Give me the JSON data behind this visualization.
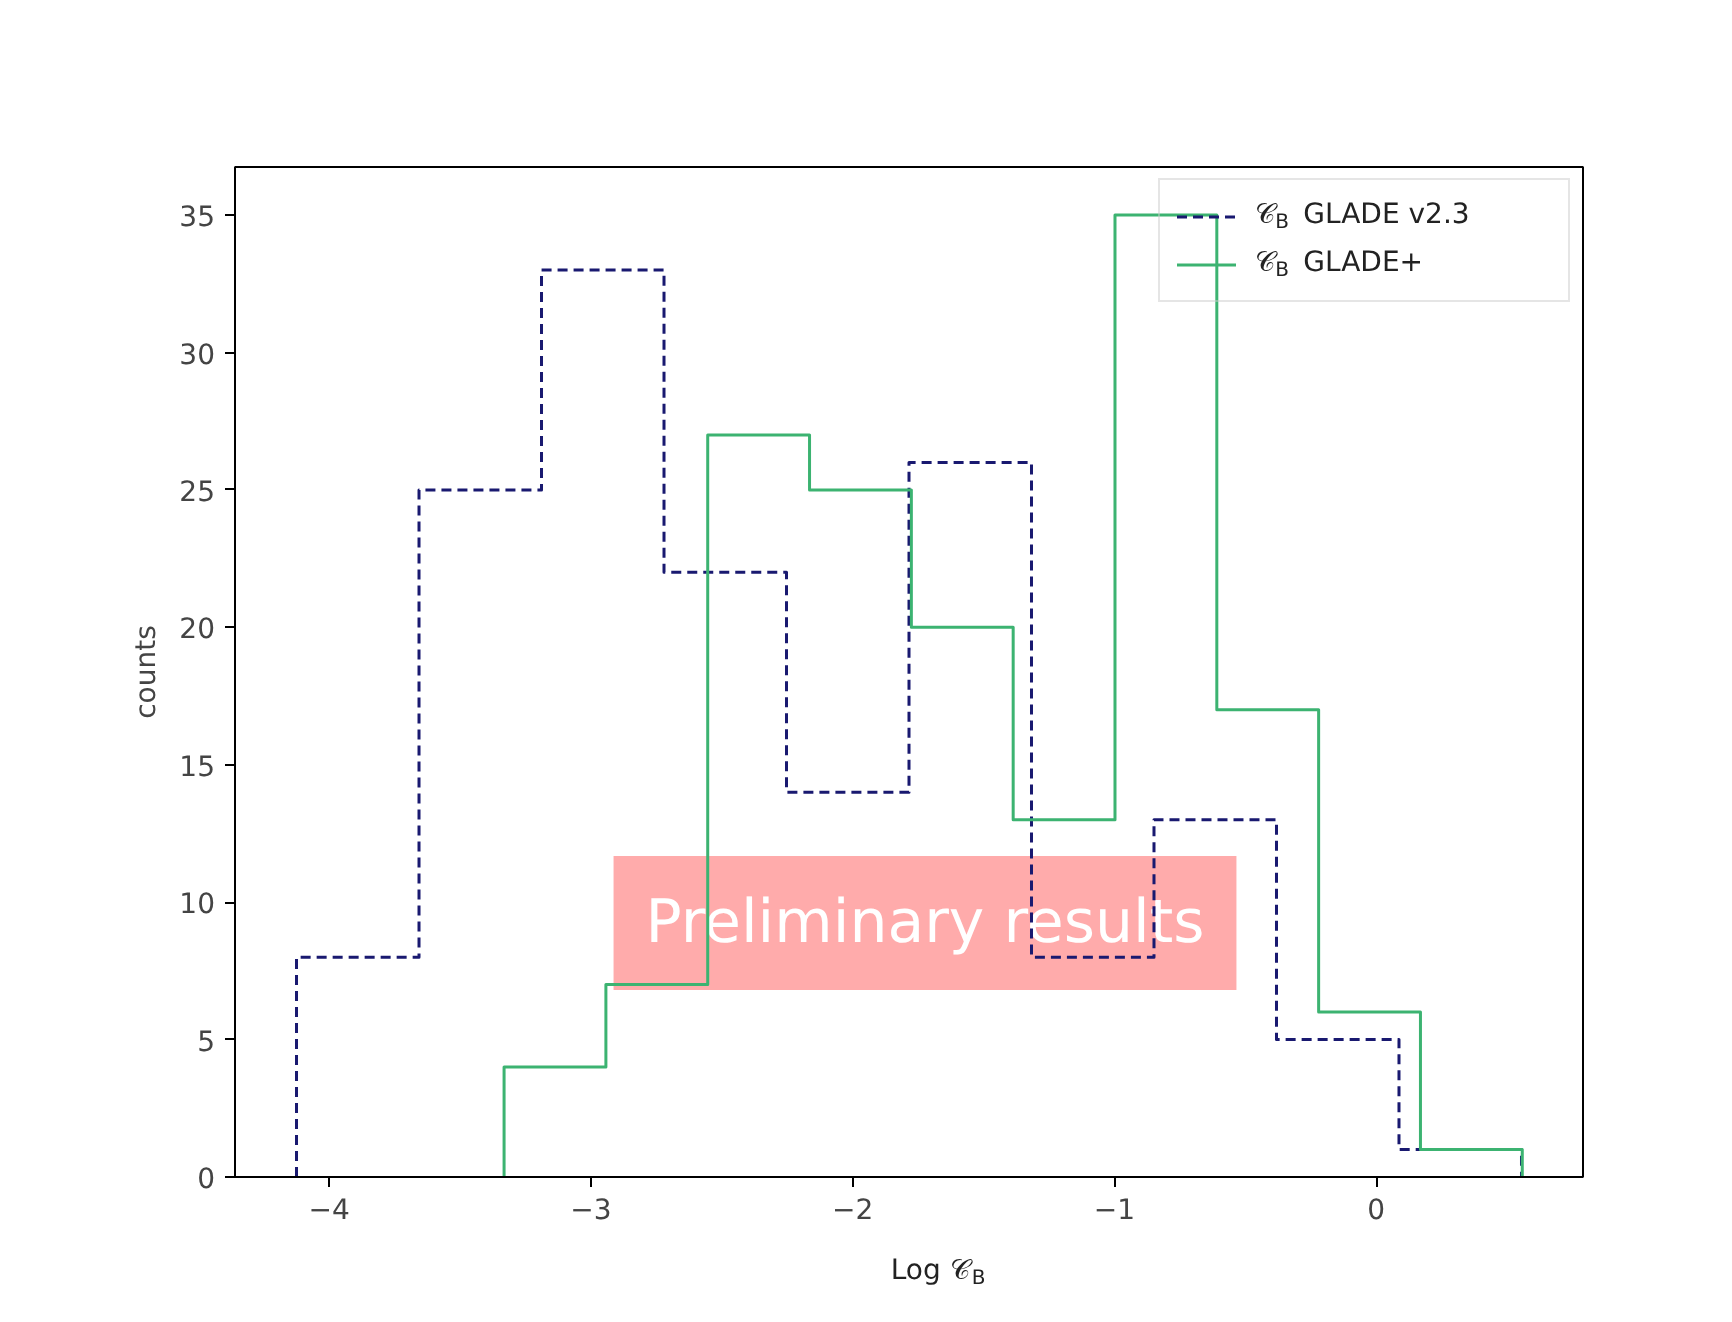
{
  "chart_data": {
    "type": "step",
    "xlabel": "Log 𝒞$_{B}$",
    "ylabel": "counts",
    "series": [
      {
        "name": "𝒞$_{B}$ GLADE v2.3",
        "color": "#191970",
        "line_style": "dashed",
        "x": [
          -4.125,
          -4.125,
          -3.657,
          -3.189,
          -2.721,
          -2.253,
          -1.785,
          -1.317,
          -0.849,
          -0.381,
          0.087,
          0.555
        ],
        "values": [
          0,
          8,
          25,
          33,
          22,
          14,
          26,
          8,
          13,
          5,
          1,
          0
        ]
      },
      {
        "name": "𝒞$_{B}$ GLADE+",
        "color": "#3cb371",
        "line_style": "solid",
        "x": [
          -3.332,
          -3.332,
          -2.943,
          -2.554,
          -2.165,
          -1.776,
          -1.387,
          -0.998,
          -0.609,
          -0.22,
          0.169,
          0.558
        ],
        "values": [
          0,
          4,
          7,
          27,
          25,
          20,
          13,
          35,
          17,
          6,
          1,
          0
        ]
      }
    ],
    "xlim": [
      -4.36,
      0.79
    ],
    "ylim": [
      0,
      36.75
    ],
    "xticks": [
      {
        "value": -4,
        "label": "−4"
      },
      {
        "value": -3,
        "label": "−3"
      },
      {
        "value": -2,
        "label": "−2"
      },
      {
        "value": -1,
        "label": "−1"
      },
      0
    ],
    "yticks": [
      0,
      5,
      10,
      15,
      20,
      25,
      30,
      35
    ],
    "legend": "top right",
    "grid": false,
    "annotations": [
      "Preliminary results"
    ]
  }
}
